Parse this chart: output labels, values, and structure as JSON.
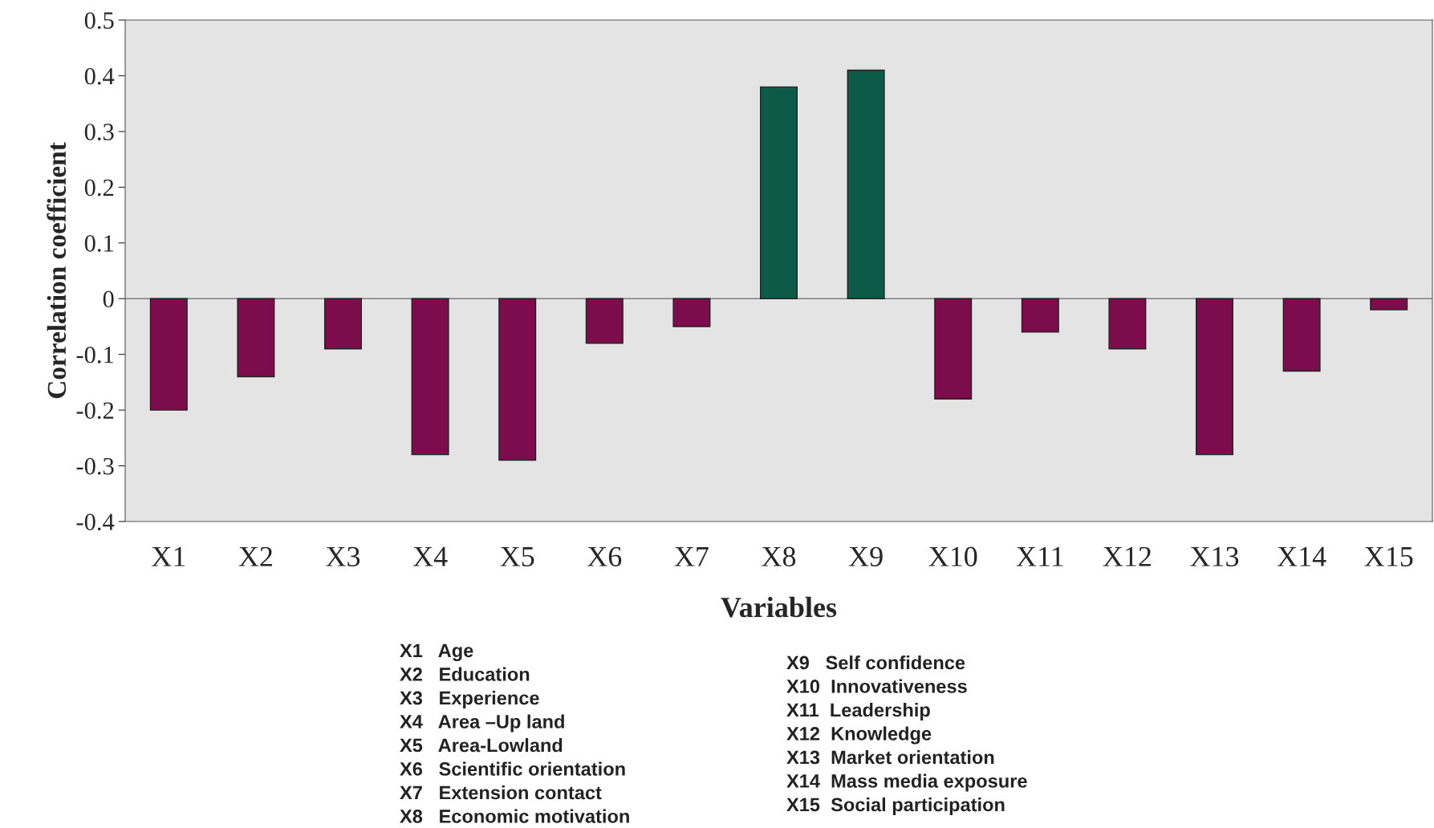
{
  "chart_data": {
    "type": "bar",
    "categories": [
      "X1",
      "X2",
      "X3",
      "X4",
      "X5",
      "X6",
      "X7",
      "X8",
      "X9",
      "X10",
      "X11",
      "X12",
      "X13",
      "X14",
      "X15"
    ],
    "values": [
      -0.2,
      -0.14,
      -0.09,
      -0.28,
      -0.29,
      -0.08,
      -0.05,
      0.38,
      0.41,
      -0.18,
      -0.06,
      -0.09,
      -0.28,
      -0.13,
      -0.02
    ],
    "colors": [
      "#7d0c4c",
      "#7d0c4c",
      "#7d0c4c",
      "#7d0c4c",
      "#7d0c4c",
      "#7d0c4c",
      "#7d0c4c",
      "#0e5a48",
      "#0e5a48",
      "#7d0c4c",
      "#7d0c4c",
      "#7d0c4c",
      "#7d0c4c",
      "#7d0c4c",
      "#7d0c4c"
    ],
    "ylim": [
      -0.4,
      0.5
    ],
    "yticks": [
      -0.4,
      -0.3,
      -0.2,
      -0.1,
      0,
      0.1,
      0.2,
      0.3,
      0.4,
      0.5
    ],
    "xlabel": "Variables",
    "ylabel": "Correlation coefficient",
    "grid": false,
    "legend": false,
    "ref_lines": [
      {
        "axis": "y",
        "value": 0,
        "color": "#808080"
      }
    ],
    "annotations": [
      "X1   Age",
      "X2   Education",
      "X3   Experience",
      "X4   Area –Up land",
      "X5   Area-Lowland",
      "X6   Scientific orientation",
      "X7   Extension contact",
      "X8   Economic motivation",
      "X9   Self confidence",
      "X10  Innovativeness",
      "X11  Leadership",
      "X12  Knowledge",
      "X13  Market orientation",
      "X14  Mass media exposure",
      "X15  Social participation"
    ]
  }
}
